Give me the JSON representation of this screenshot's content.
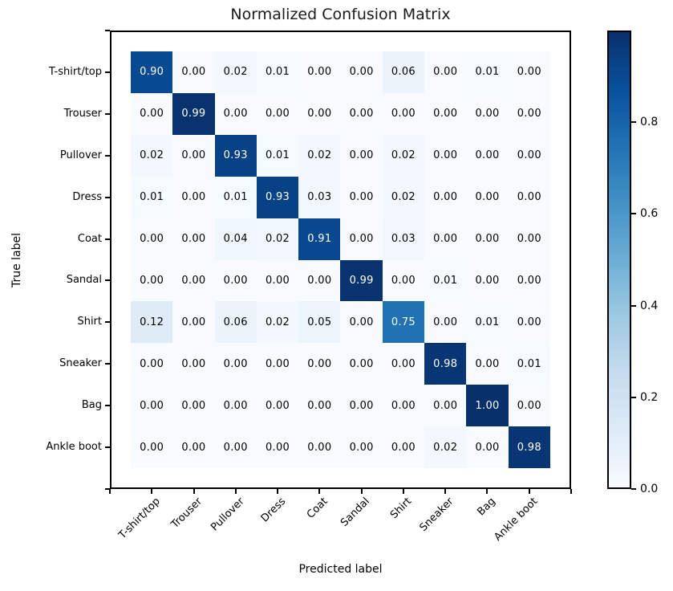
{
  "chart_data": {
    "type": "heatmap",
    "title": "Normalized Confusion Matrix",
    "xlabel": "Predicted label",
    "ylabel": "True label",
    "categories": [
      "T-shirt/top",
      "Trouser",
      "Pullover",
      "Dress",
      "Coat",
      "Sandal",
      "Shirt",
      "Sneaker",
      "Bag",
      "Ankle boot"
    ],
    "matrix": [
      [
        0.9,
        0.0,
        0.02,
        0.01,
        0.0,
        0.0,
        0.06,
        0.0,
        0.01,
        0.0
      ],
      [
        0.0,
        0.99,
        0.0,
        0.0,
        0.0,
        0.0,
        0.0,
        0.0,
        0.0,
        0.0
      ],
      [
        0.02,
        0.0,
        0.93,
        0.01,
        0.02,
        0.0,
        0.02,
        0.0,
        0.0,
        0.0
      ],
      [
        0.01,
        0.0,
        0.01,
        0.93,
        0.03,
        0.0,
        0.02,
        0.0,
        0.0,
        0.0
      ],
      [
        0.0,
        0.0,
        0.04,
        0.02,
        0.91,
        0.0,
        0.03,
        0.0,
        0.0,
        0.0
      ],
      [
        0.0,
        0.0,
        0.0,
        0.0,
        0.0,
        0.99,
        0.0,
        0.01,
        0.0,
        0.0
      ],
      [
        0.12,
        0.0,
        0.06,
        0.02,
        0.05,
        0.0,
        0.75,
        0.0,
        0.01,
        0.0
      ],
      [
        0.0,
        0.0,
        0.0,
        0.0,
        0.0,
        0.0,
        0.0,
        0.98,
        0.0,
        0.01
      ],
      [
        0.0,
        0.0,
        0.0,
        0.0,
        0.0,
        0.0,
        0.0,
        0.0,
        1.0,
        0.0
      ],
      [
        0.0,
        0.0,
        0.0,
        0.0,
        0.0,
        0.0,
        0.0,
        0.02,
        0.0,
        0.98
      ]
    ],
    "vmin": 0.0,
    "vmax": 1.0,
    "colormap": "Blues",
    "colorbar_ticks": [
      0.0,
      0.2,
      0.4,
      0.6,
      0.8
    ],
    "value_decimals": 2,
    "grid": false,
    "legend": "colorbar-right"
  },
  "colors": {
    "cmap_stops": [
      "#f7fbff",
      "#deebf7",
      "#c6dbef",
      "#9ecae1",
      "#6baed6",
      "#4292c6",
      "#2171b5",
      "#08519c",
      "#08306b"
    ],
    "cell_text_dark": "#000000",
    "cell_text_light": "#ffffff",
    "axis": "#000000",
    "background": "#ffffff"
  }
}
